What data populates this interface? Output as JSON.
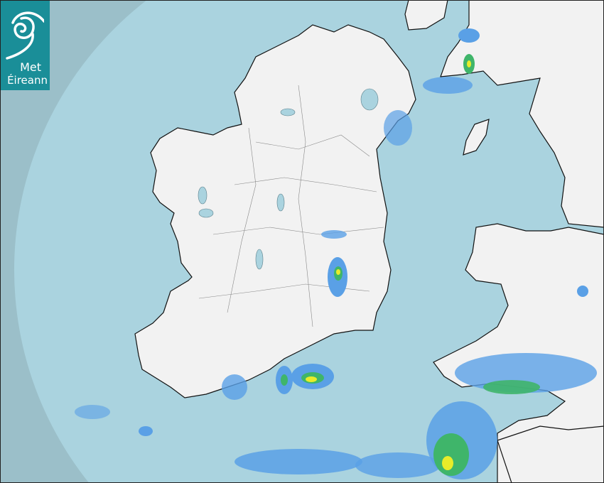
{
  "logo": {
    "line1": "Met",
    "line2": "Éireann"
  },
  "colors": {
    "ocean_outside_range": "#9bbfc9",
    "ocean_in_range": "#aad3df",
    "land": "#f2f2f2",
    "lakes": "#aad3df",
    "rain_light": "#5aa0e6",
    "rain_moderate": "#3fb56a",
    "rain_heavy": "#e8ec2a",
    "logo_bg": "#1a8e98"
  }
}
